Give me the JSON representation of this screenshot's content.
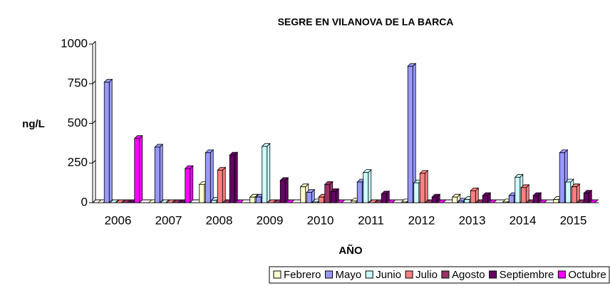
{
  "chart_data": {
    "type": "bar3d",
    "title": "SEGRE EN VILANOVA DE LA BARCA",
    "x_label": "AÑO",
    "y_label": "ng/L",
    "categories": [
      "2006",
      "2007",
      "2008",
      "2009",
      "2010",
      "2011",
      "2012",
      "2013",
      "2014",
      "2015"
    ],
    "series": [
      {
        "name": "Febrero",
        "color": "#ffffcc",
        "values": [
          0,
          0,
          115,
          35,
          100,
          10,
          5,
          35,
          5,
          20
        ]
      },
      {
        "name": "Mayo",
        "color": "#9999ff",
        "values": [
          760,
          350,
          315,
          35,
          65,
          130,
          860,
          10,
          45,
          315
        ]
      },
      {
        "name": "Junio",
        "color": "#ccffff",
        "values": [
          0,
          0,
          15,
          355,
          5,
          190,
          125,
          20,
          160,
          130
        ]
      },
      {
        "name": "Julio",
        "color": "#ff8080",
        "values": [
          0,
          0,
          205,
          0,
          35,
          0,
          185,
          75,
          95,
          100
        ]
      },
      {
        "name": "Agosto",
        "color": "#993366",
        "values": [
          0,
          0,
          0,
          0,
          115,
          0,
          0,
          0,
          0,
          0
        ]
      },
      {
        "name": "Septiembre",
        "color": "#660066",
        "values": [
          0,
          0,
          300,
          140,
          70,
          55,
          35,
          45,
          45,
          60
        ]
      },
      {
        "name": "Octubre",
        "color": "#ff00ff",
        "values": [
          405,
          215,
          0,
          0,
          0,
          0,
          0,
          0,
          0,
          0
        ]
      }
    ],
    "ylim": [
      0,
      1000
    ],
    "yticks": [
      0,
      250,
      500,
      750,
      1000
    ],
    "legend": "bottom-right"
  }
}
